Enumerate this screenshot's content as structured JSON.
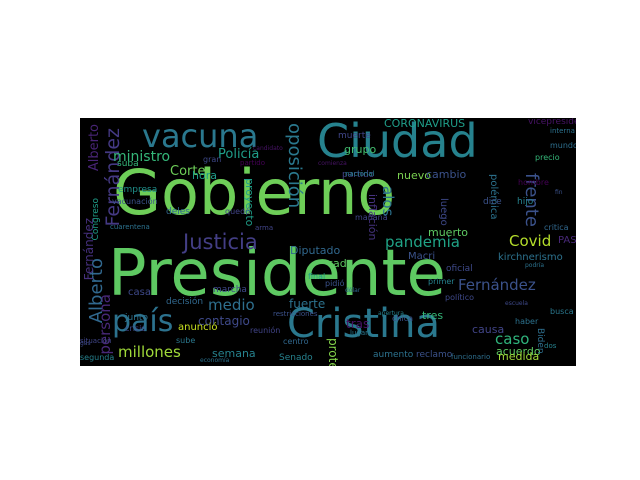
{
  "words": [
    {
      "text": "Gobierno",
      "color": "#6ece58"
    },
    {
      "text": "Presidente",
      "color": "#5ec962"
    },
    {
      "text": "Ciudad",
      "color": "#26828e"
    },
    {
      "text": "Cristina",
      "color": "#2a788e"
    },
    {
      "text": "vacuna",
      "color": "#2a788e"
    },
    {
      "text": "país",
      "color": "#2c728e"
    },
    {
      "text": "Justicia",
      "color": "#433e85"
    },
    {
      "text": "Fernández",
      "color": "#3b528b"
    },
    {
      "text": "Alberto",
      "color": "#31688e"
    },
    {
      "text": "pandemia",
      "color": "#20a386"
    },
    {
      "text": "Covid",
      "color": "#b5de2b"
    },
    {
      "text": "millones",
      "color": "#a0da39"
    },
    {
      "text": "Fernández",
      "color": "#443983"
    },
    {
      "text": "oposición",
      "color": "#2a788e"
    },
    {
      "text": "persona",
      "color": "#482878"
    },
    {
      "text": "ministro",
      "color": "#35b779"
    },
    {
      "text": "caso",
      "color": "#2fb47c"
    },
    {
      "text": "frente",
      "color": "#3b528b"
    },
    {
      "text": "Policía",
      "color": "#1f9e89"
    },
    {
      "text": "medio",
      "color": "#2e6f8e"
    },
    {
      "text": "Alberto",
      "color": "#482475"
    },
    {
      "text": "Fernández",
      "color": "#46307e"
    },
    {
      "text": "alos",
      "color": "#2c728e"
    },
    {
      "text": "Corte",
      "color": "#6ece58"
    },
    {
      "text": "CORONAVIRUS",
      "color": "#1f9e89"
    },
    {
      "text": "muerte",
      "color": "#404688"
    },
    {
      "text": "grupo",
      "color": "#44bf70"
    },
    {
      "text": "nuevo",
      "color": "#7ad151"
    },
    {
      "text": "muerto",
      "color": "#5ec962"
    },
    {
      "text": "cambio",
      "color": "#3b528b"
    },
    {
      "text": "causa",
      "color": "#414487"
    },
    {
      "text": "acuerdo",
      "color": "#5ec962"
    },
    {
      "text": "medida",
      "color": "#a0da39"
    },
    {
      "text": "contagio",
      "color": "#3e4989"
    },
    {
      "text": "fuerte",
      "color": "#2c728e"
    },
    {
      "text": "semana",
      "color": "#26828e"
    },
    {
      "text": "protesta",
      "color": "#84d44b"
    },
    {
      "text": "Diputado",
      "color": "#31688e"
    },
    {
      "text": "cada",
      "color": "#5ec962"
    },
    {
      "text": "tres",
      "color": "#35b779"
    },
    {
      "text": "tras",
      "color": "#471365"
    },
    {
      "text": "kirchnerismo",
      "color": "#2c728e"
    },
    {
      "text": "Macri",
      "color": "#3b528b"
    },
    {
      "text": "luego",
      "color": "#3e4989"
    },
    {
      "text": "hora",
      "color": "#1f9e89"
    },
    {
      "text": "anunció",
      "color": "#c8e020"
    },
    {
      "text": "empresa",
      "color": "#21918c"
    },
    {
      "text": "suba",
      "color": "#35b779"
    },
    {
      "text": "inflación",
      "color": "#46337f"
    },
    {
      "text": "polémica",
      "color": "#2c728e"
    },
    {
      "text": "proyecto",
      "color": "#1f9e89"
    },
    {
      "text": "partido",
      "color": "#414487"
    },
    {
      "text": "hijo",
      "color": "#26828e"
    },
    {
      "text": "dice",
      "color": "#3b528b"
    },
    {
      "text": "casa",
      "color": "#3e4989"
    },
    {
      "text": "reclamo",
      "color": "#3b528b"
    },
    {
      "text": "aumento",
      "color": "#2c728e"
    },
    {
      "text": "Senado",
      "color": "#26828e"
    },
    {
      "text": "Biden",
      "color": "#2e6f8e"
    },
    {
      "text": "PASO",
      "color": "#482878"
    },
    {
      "text": "vacunación",
      "color": "#3b528b"
    },
    {
      "text": "Congreso",
      "color": "#1f9e89"
    },
    {
      "text": "mañana",
      "color": "#414487"
    },
    {
      "text": "final",
      "color": "#1f9e89"
    },
    {
      "text": "pidió",
      "color": "#3b528b"
    },
    {
      "text": "marcha",
      "color": "#3e4989"
    },
    {
      "text": "decisión",
      "color": "#31688e"
    },
    {
      "text": "junto",
      "color": "#2c728e"
    },
    {
      "text": "crisis",
      "color": "#404688"
    },
    {
      "text": "sube",
      "color": "#2a788e"
    },
    {
      "text": "nacional",
      "color": "#277f8e"
    },
    {
      "text": "vicepresidenta",
      "color": "#471365"
    },
    {
      "text": "oficial",
      "color": "#3e4989"
    },
    {
      "text": "primer",
      "color": "#26828e"
    },
    {
      "text": "mundo",
      "color": "#2e6f8e"
    },
    {
      "text": "interna",
      "color": "#2c728e"
    },
    {
      "text": "reunión",
      "color": "#414487"
    },
    {
      "text": "centro",
      "color": "#31688e"
    },
    {
      "text": "chica",
      "color": "#3b528b"
    },
    {
      "text": "funcionario",
      "color": "#2e6f8e"
    },
    {
      "text": "segunda",
      "color": "#26828e"
    },
    {
      "text": "hombre",
      "color": "#440154"
    },
    {
      "text": "critica",
      "color": "#31688e"
    },
    {
      "text": "político",
      "color": "#3e4989"
    },
    {
      "text": "haber",
      "color": "#2c728e"
    },
    {
      "text": "deles",
      "color": "#31688e"
    },
    {
      "text": "quedó",
      "color": "#414487"
    },
    {
      "text": "gran",
      "color": "#3e4989"
    },
    {
      "text": "busca",
      "color": "#2a788e"
    },
    {
      "text": "precio",
      "color": "#35b779"
    },
    {
      "text": "cuarentena",
      "color": "#2c728e"
    },
    {
      "text": "candidato",
      "color": "#471365"
    },
    {
      "text": "fin",
      "color": "#3b528b"
    },
    {
      "text": "dos",
      "color": "#26828e"
    },
    {
      "text": "arma",
      "color": "#414487"
    },
    {
      "text": "situación",
      "color": "#404688"
    },
    {
      "text": "economía",
      "color": "#2c728e"
    },
    {
      "text": "gas",
      "color": "#3e4989"
    },
    {
      "text": "lugar",
      "color": "#2a788e"
    },
    {
      "text": "partido",
      "color": "#440154"
    },
    {
      "text": "restricciones",
      "color": "#3b528b"
    },
    {
      "text": "podría",
      "color": "#2c728e"
    },
    {
      "text": "apertura",
      "color": "#26828e"
    },
    {
      "text": "comienza",
      "color": "#471365"
    },
    {
      "text": "escuela",
      "color": "#3e4989"
    },
    {
      "text": "dólar",
      "color": "#31688e"
    }
  ]
}
